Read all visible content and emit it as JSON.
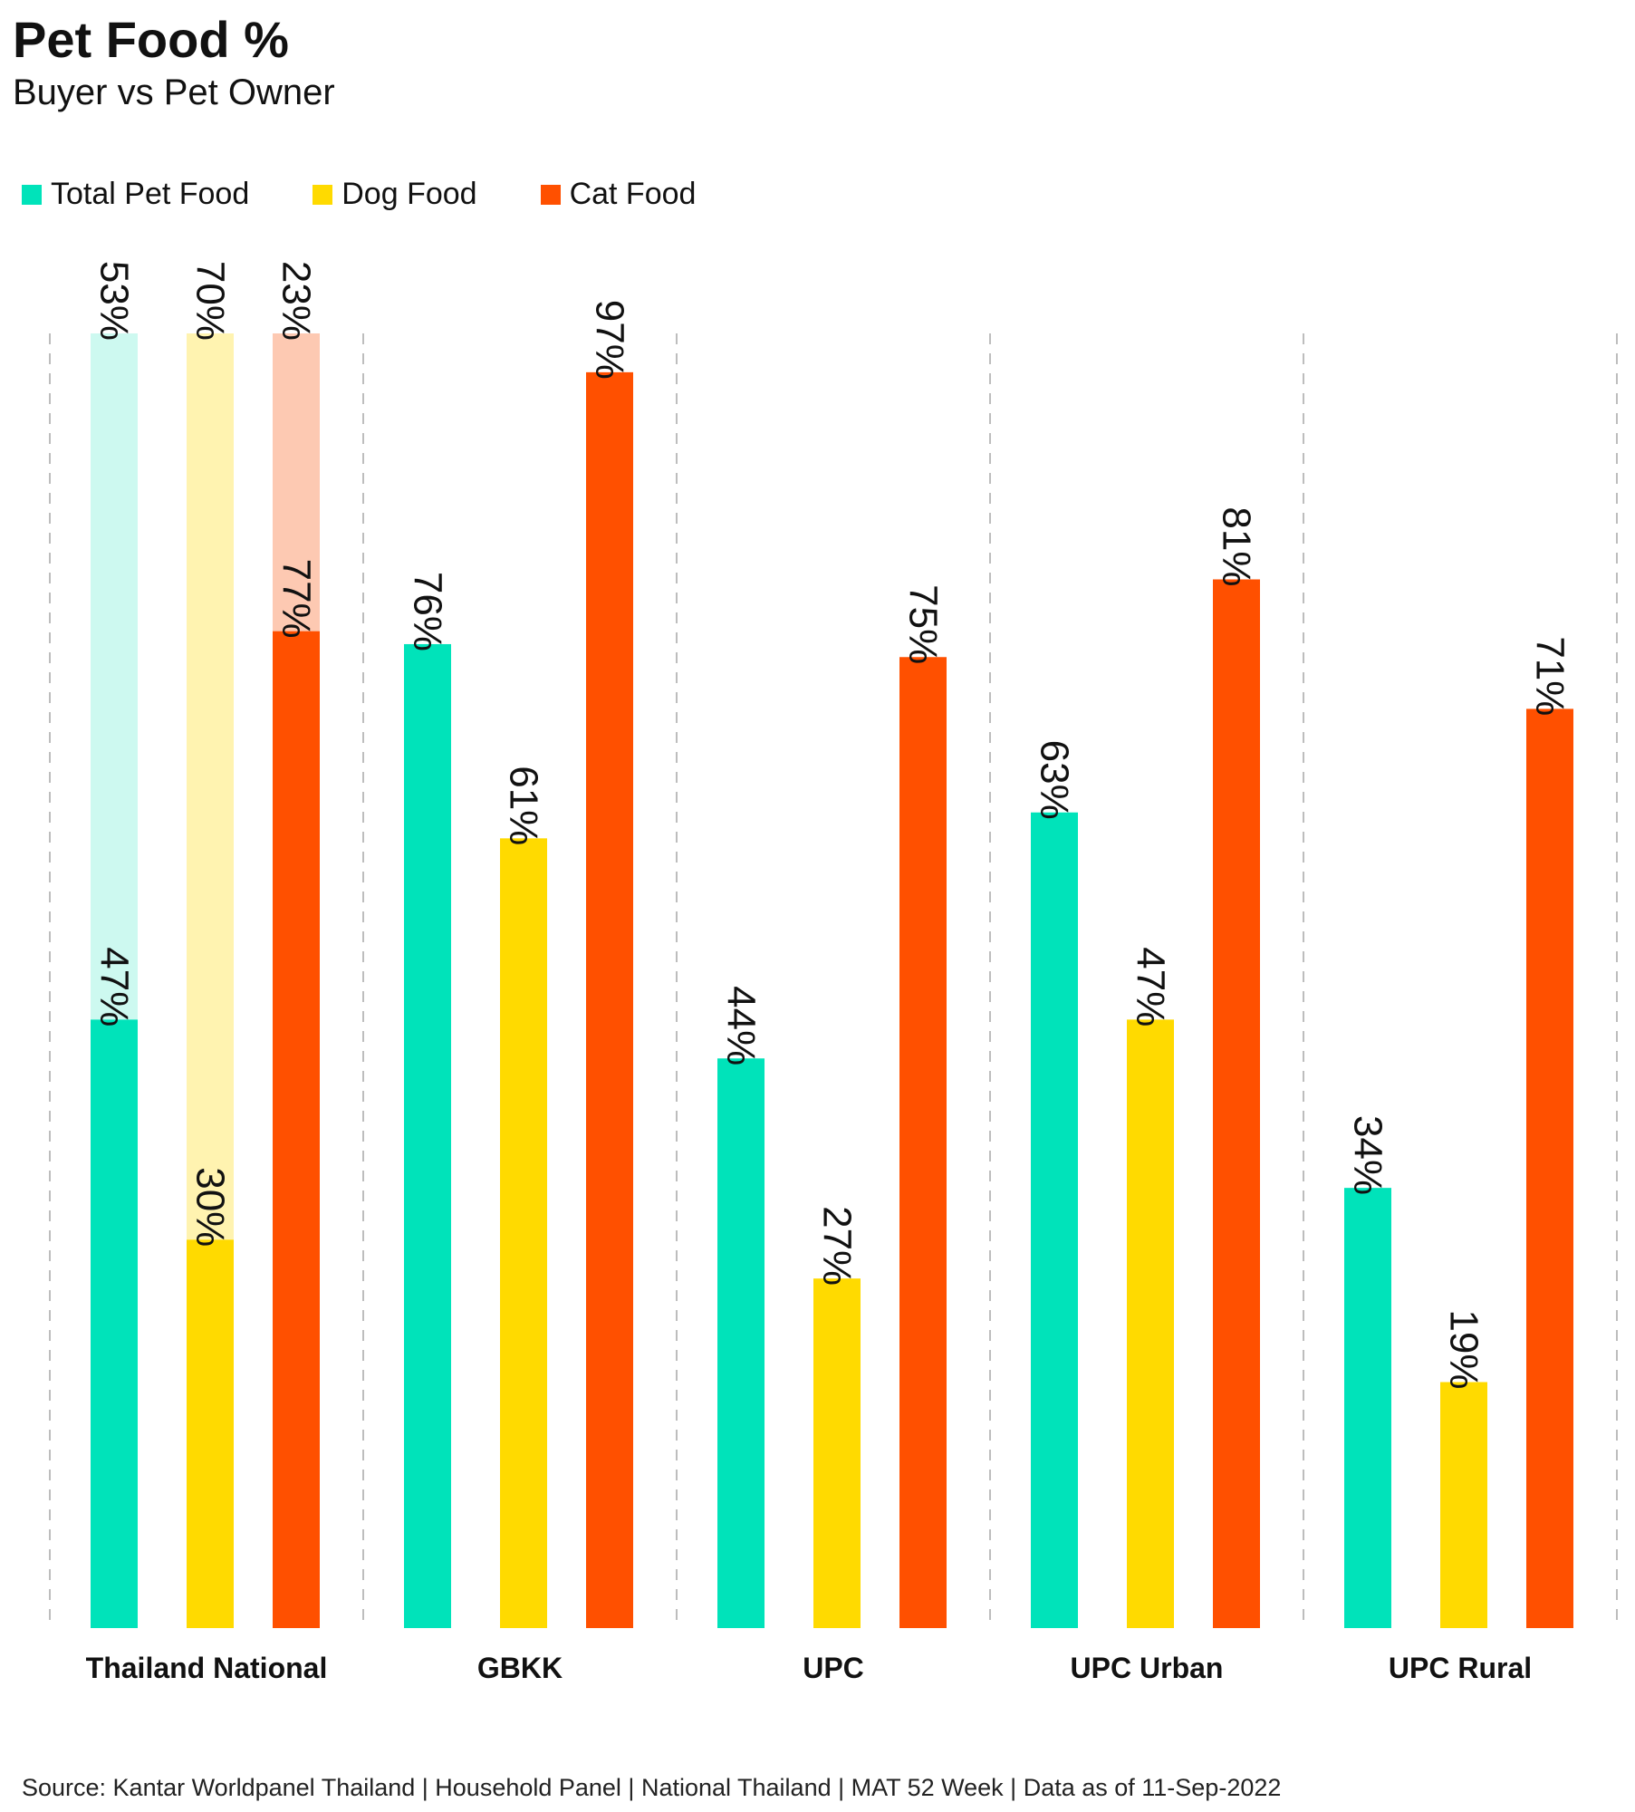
{
  "header": {
    "title": "Pet Food %",
    "subtitle": "Buyer vs Pet Owner"
  },
  "legend": [
    {
      "label": "Total Pet Food",
      "color": "#00E3BA"
    },
    {
      "label": "Dog Food",
      "color": "#FFDA00"
    },
    {
      "label": "Cat Food",
      "color": "#FF5000"
    }
  ],
  "chart_data": {
    "type": "bar",
    "categories": [
      "Thailand National",
      "GBKK",
      "UPC",
      "UPC Urban",
      "UPC Rural"
    ],
    "ylim": [
      0,
      100
    ],
    "grid": "dashed vertical separators between categories",
    "legend_position": "top-left",
    "series": [
      {
        "name": "Total Pet Food",
        "color": "#00E3BA",
        "light_color": "#CDF9F0",
        "values": [
          47,
          76,
          44,
          63,
          34
        ],
        "labels": [
          "47%",
          "76%",
          "44%",
          "63%",
          "34%"
        ]
      },
      {
        "name": "Dog Food",
        "color": "#FFDA00",
        "light_color": "#FFF3B0",
        "values": [
          30,
          61,
          27,
          47,
          19
        ],
        "labels": [
          "30%",
          "61%",
          "27%",
          "47%",
          "19%"
        ]
      },
      {
        "name": "Cat Food",
        "color": "#FF5000",
        "light_color": "#FDC9B2",
        "values": [
          77,
          97,
          75,
          81,
          71
        ],
        "labels": [
          "77%",
          "97%",
          "75%",
          "81%",
          "71%"
        ]
      }
    ],
    "remainder": {
      "category": "Thailand National",
      "values": [
        53,
        70,
        23
      ],
      "labels": [
        "53%",
        "70%",
        "23%"
      ]
    }
  },
  "footer": {
    "source": "Source: Kantar Worldpanel Thailand | Household Panel | National Thailand | MAT 52 Week | Data as of 11-Sep-2022"
  }
}
